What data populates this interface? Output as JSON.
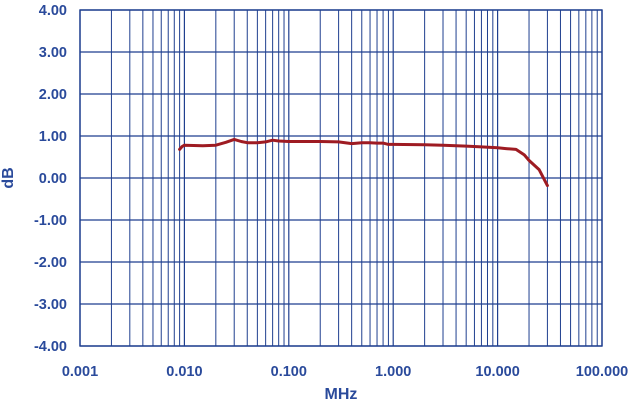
{
  "chart_data": {
    "type": "line",
    "title": "",
    "xlabel": "MHz",
    "ylabel": "dB",
    "x_scale": "log",
    "xlim": [
      0.001,
      100
    ],
    "ylim": [
      -4,
      4
    ],
    "grid": true,
    "x_ticks": [
      0.001,
      0.01,
      0.1,
      1,
      10,
      100
    ],
    "x_tick_labels": [
      "0.001",
      "0.010",
      "0.100",
      "1.000",
      "10.000",
      "100.000"
    ],
    "y_ticks": [
      4,
      3,
      2,
      1,
      0,
      -1,
      -2,
      -3,
      -4
    ],
    "y_tick_labels": [
      "4.00",
      "3.00",
      "2.00",
      "1.00",
      "0.00",
      "-1.00",
      "-2.00",
      "-3.00",
      "-4.00"
    ],
    "colors": {
      "text": "#2a4a9b",
      "grid": "#1f3f8f",
      "line": "#9e1b22"
    },
    "series": [
      {
        "x": [
          0.009,
          0.0095,
          0.01,
          0.015,
          0.02,
          0.025,
          0.03,
          0.035,
          0.04,
          0.05,
          0.06,
          0.07,
          0.08,
          0.1,
          0.15,
          0.2,
          0.3,
          0.4,
          0.5,
          0.6,
          0.7,
          0.8,
          0.9,
          1,
          2,
          3,
          5,
          7,
          10,
          12,
          15,
          18,
          20,
          25,
          30
        ],
        "y": [
          0.68,
          0.75,
          0.78,
          0.77,
          0.78,
          0.85,
          0.92,
          0.87,
          0.84,
          0.84,
          0.86,
          0.9,
          0.88,
          0.87,
          0.87,
          0.87,
          0.86,
          0.82,
          0.84,
          0.84,
          0.83,
          0.83,
          0.8,
          0.8,
          0.79,
          0.78,
          0.76,
          0.74,
          0.72,
          0.7,
          0.68,
          0.55,
          0.42,
          0.2,
          -0.18
        ]
      }
    ]
  }
}
